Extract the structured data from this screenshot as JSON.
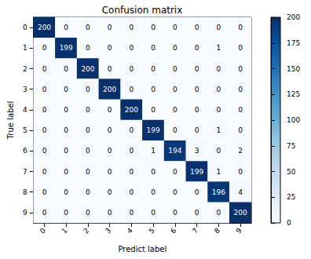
{
  "chart_data": {
    "type": "heatmap",
    "title": "Confusion matrix",
    "x_label": "Predict label",
    "y_label": "True label",
    "x_categories": [
      "0",
      "1",
      "2",
      "3",
      "4",
      "5",
      "6",
      "7",
      "8",
      "9"
    ],
    "y_categories": [
      "0",
      "1",
      "2",
      "3",
      "4",
      "5",
      "6",
      "7",
      "8",
      "9"
    ],
    "cells": [
      [
        200,
        0,
        0,
        0,
        0,
        0,
        0,
        0,
        0,
        0
      ],
      [
        0,
        199,
        0,
        0,
        0,
        0,
        0,
        0,
        1,
        0
      ],
      [
        0,
        0,
        200,
        0,
        0,
        0,
        0,
        0,
        0,
        0
      ],
      [
        0,
        0,
        0,
        200,
        0,
        0,
        0,
        0,
        0,
        0
      ],
      [
        0,
        0,
        0,
        0,
        200,
        0,
        0,
        0,
        0,
        0
      ],
      [
        0,
        0,
        0,
        0,
        0,
        199,
        0,
        0,
        1,
        0
      ],
      [
        0,
        0,
        0,
        0,
        0,
        1,
        194,
        3,
        0,
        2
      ],
      [
        0,
        0,
        0,
        0,
        0,
        0,
        0,
        199,
        1,
        0
      ],
      [
        0,
        0,
        0,
        0,
        0,
        0,
        0,
        0,
        196,
        4
      ],
      [
        0,
        0,
        0,
        0,
        0,
        0,
        0,
        0,
        0,
        200
      ]
    ],
    "colorbar": {
      "range": [
        0,
        200
      ],
      "ticks": [
        0,
        25,
        50,
        75,
        100,
        125,
        150,
        175,
        200
      ]
    },
    "data_labels": true
  }
}
